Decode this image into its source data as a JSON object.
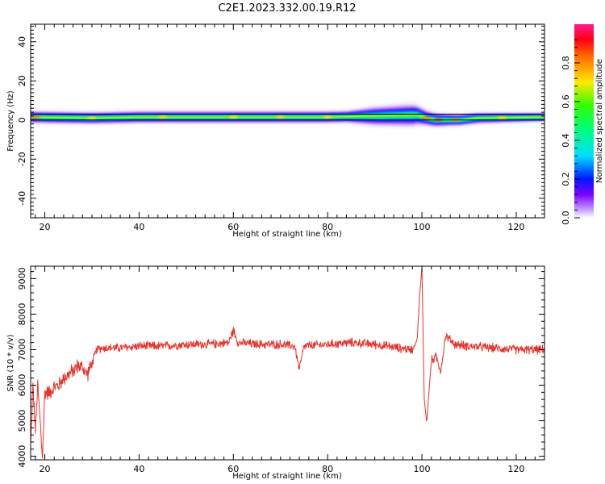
{
  "title": "C2E1.2023.332.00.19.R12",
  "colors": {
    "snr_line": "#e8322a",
    "axis": "#000000",
    "background": "#ffffff"
  },
  "chart_data": [
    {
      "type": "heatmap",
      "xlabel": "Height of straight line (km)",
      "ylabel": "Frequency (Hz)",
      "xlim": [
        17,
        126
      ],
      "ylim": [
        -50,
        49
      ],
      "x_ticks": [
        "20",
        "40",
        "60",
        "80",
        "100",
        "120"
      ],
      "y_ticks": [
        "40",
        "20",
        "0",
        "-20",
        "-40"
      ],
      "colorbar_label": "Normalized spectral amplitude",
      "colorbar_ticks": [
        "0.0",
        "0.2",
        "0.4",
        "0.6",
        "0.8"
      ],
      "colorbar_range": [
        0,
        1
      ],
      "colormap": "gist_rainbow_r",
      "band_center_hz": [
        [
          17,
          1.5
        ],
        [
          30,
          1.0
        ],
        [
          40,
          1.5
        ],
        [
          60,
          1.5
        ],
        [
          80,
          1.5
        ],
        [
          90,
          2.0
        ],
        [
          99,
          2.5
        ],
        [
          101,
          1.0
        ],
        [
          103,
          0.0
        ],
        [
          108,
          0.0
        ],
        [
          112,
          1.0
        ],
        [
          126,
          1.5
        ]
      ],
      "band_halfwidth_hz": [
        [
          17,
          3
        ],
        [
          40,
          3
        ],
        [
          84,
          3
        ],
        [
          90,
          5
        ],
        [
          98,
          6
        ],
        [
          101,
          4
        ],
        [
          106,
          3
        ],
        [
          126,
          2
        ]
      ],
      "reference_lines_hz": [
        0,
        3
      ]
    },
    {
      "type": "line",
      "xlabel": "Height of straight line (km)",
      "ylabel": "SNR (10 * v/v)",
      "xlim": [
        17,
        126
      ],
      "ylim": [
        3900,
        9350
      ],
      "x_ticks": [
        "20",
        "40",
        "60",
        "80",
        "100",
        "120"
      ],
      "y_ticks": [
        "9000",
        "8000",
        "7000",
        "6000",
        "5000",
        "4000"
      ],
      "series": [
        {
          "x": [
            17.0,
            17.5,
            18.0,
            18.5,
            19.0,
            19.5,
            20.0,
            21,
            22,
            23,
            24,
            25,
            26,
            27,
            28,
            29,
            30,
            31,
            32,
            34,
            36,
            40,
            45,
            50,
            55,
            59,
            60,
            61,
            65,
            70,
            73,
            74,
            75,
            80,
            85,
            90,
            95,
            98,
            99.0,
            99.5,
            100.0,
            100.5,
            101.0,
            102,
            103,
            104,
            105,
            107,
            110,
            115,
            120,
            126
          ],
          "y": [
            4300,
            6000,
            4700,
            6000,
            5000,
            3950,
            5800,
            5800,
            5950,
            6000,
            6200,
            6300,
            6400,
            6550,
            6500,
            6300,
            6600,
            7000,
            7050,
            7050,
            7050,
            7100,
            7100,
            7150,
            7150,
            7200,
            7550,
            7200,
            7150,
            7150,
            7100,
            6450,
            7100,
            7150,
            7200,
            7150,
            7050,
            7000,
            7300,
            8500,
            9300,
            5600,
            4950,
            6700,
            6800,
            6400,
            7400,
            7150,
            7100,
            7050,
            7000,
            7000
          ]
        }
      ]
    }
  ]
}
